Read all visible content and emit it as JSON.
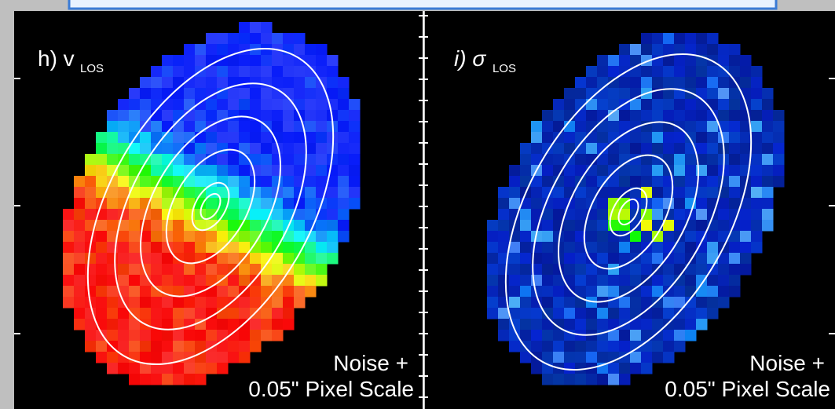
{
  "panels": [
    {
      "label": "h) v",
      "subscript": "LOS",
      "note_lines": [
        "Noise +",
        "0.05\" Pixel Scale"
      ]
    },
    {
      "label": "i) σ",
      "subscript": "LOS",
      "note_lines": [
        "Noise +",
        "0.05\" Pixel Scale"
      ]
    }
  ]
}
